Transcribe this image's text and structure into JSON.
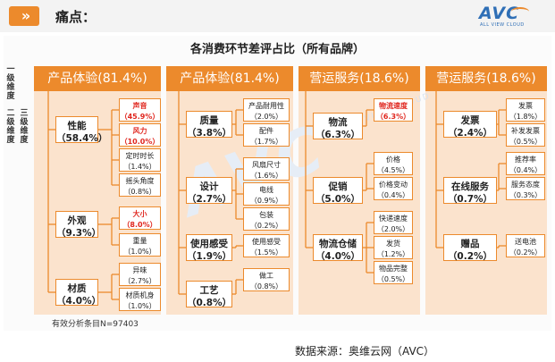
{
  "header": {
    "chevron": "»",
    "label": "痛点："
  },
  "logo": {
    "brand": "AVC",
    "tagline": "ALL VIEW CLOUD"
  },
  "watermark": "AVC",
  "watermark_sub": "ALL VIEW CLOUD",
  "chart_data": {
    "type": "table",
    "title": "各消费环节差评占比（所有品牌）",
    "level_labels": [
      "一级维度",
      "二级维度",
      "三级维度"
    ],
    "columns": [
      {
        "label": "产品体验(81.4%)",
        "name": "产品体验",
        "value": 81.4
      },
      {
        "label": "产品体验(81.4%)",
        "name": "产品体验",
        "value": 81.4
      },
      {
        "label": "营运服务(18.6%)",
        "name": "营运服务",
        "value": 18.6
      },
      {
        "label": "营运服务(18.6%)",
        "name": "营运服务",
        "value": 18.6
      }
    ],
    "nodes": [
      {
        "name": "性能",
        "value": "（58.4%）",
        "children": [
          {
            "name": "声音",
            "value": "（45.9%）",
            "highlight": true
          },
          {
            "name": "风力",
            "value": "（10.0%）",
            "highlight": true
          },
          {
            "name": "定时时长",
            "value": "（1.4%）"
          },
          {
            "name": "摇头角度",
            "value": "（0.8%）"
          }
        ]
      },
      {
        "name": "外观",
        "value": "（9.3%）",
        "children": [
          {
            "name": "大小",
            "value": "（8.0%）",
            "highlight": true
          },
          {
            "name": "重量",
            "value": "（1.0%）"
          }
        ]
      },
      {
        "name": "材质",
        "value": "（4.0%）",
        "children": [
          {
            "name": "异味",
            "value": "（2.7%）"
          },
          {
            "name": "材质机身",
            "value": "（1.0%）"
          }
        ]
      },
      {
        "name": "质量",
        "value": "（3.8%）",
        "children": [
          {
            "name": "产品耐用性",
            "value": "（2.0%）"
          },
          {
            "name": "配件",
            "value": "（1.7%）"
          }
        ]
      },
      {
        "name": "设计",
        "value": "（2.7%）",
        "children": [
          {
            "name": "风扇尺寸",
            "value": "（1.6%）"
          },
          {
            "name": "电线",
            "value": "（0.9%）"
          },
          {
            "name": "包装",
            "value": "（0.2%）"
          }
        ]
      },
      {
        "name": "使用感受",
        "value": "（1.9%）",
        "children": [
          {
            "name": "使用感受",
            "value": "（1.5%）"
          }
        ]
      },
      {
        "name": "工艺",
        "value": "（0.8%）",
        "children": [
          {
            "name": "做工",
            "value": "（0.8%）"
          }
        ]
      },
      {
        "name": "物流",
        "value": "（6.3%）",
        "children": [
          {
            "name": "物流速度",
            "value": "（6.3%）",
            "highlight": true
          }
        ]
      },
      {
        "name": "促销",
        "value": "（5.0%）",
        "children": [
          {
            "name": "价格",
            "value": "（4.5%）"
          },
          {
            "name": "价格变动",
            "value": "（0.4%）"
          }
        ]
      },
      {
        "name": "物流仓储",
        "value": "（4.0%）",
        "children": [
          {
            "name": "快递速度",
            "value": "（2.0%）"
          },
          {
            "name": "发货",
            "value": "（1.2%）"
          },
          {
            "name": "物品完整",
            "value": "（0.5%）"
          }
        ]
      },
      {
        "name": "发票",
        "value": "（2.4%）",
        "children": [
          {
            "name": "发票",
            "value": "（1.8%）"
          },
          {
            "name": "补发发票",
            "value": "（0.5%）"
          }
        ]
      },
      {
        "name": "在线服务",
        "value": "（0.7%）",
        "children": [
          {
            "name": "推荐率",
            "value": "（0.4%）"
          },
          {
            "name": "服务态度",
            "value": "（0.3%）"
          }
        ]
      },
      {
        "name": "赠品",
        "value": "（0.2%）",
        "children": [
          {
            "name": "送电池",
            "value": "（0.2%）"
          }
        ]
      }
    ],
    "sample_note": "有效分析条目N=97403",
    "source": "数据来源：奥维云网（AVC）",
    "colors": {
      "accent": "#ec8a2c",
      "band": "#fbe3cd",
      "highlight": "#e0271f"
    }
  }
}
